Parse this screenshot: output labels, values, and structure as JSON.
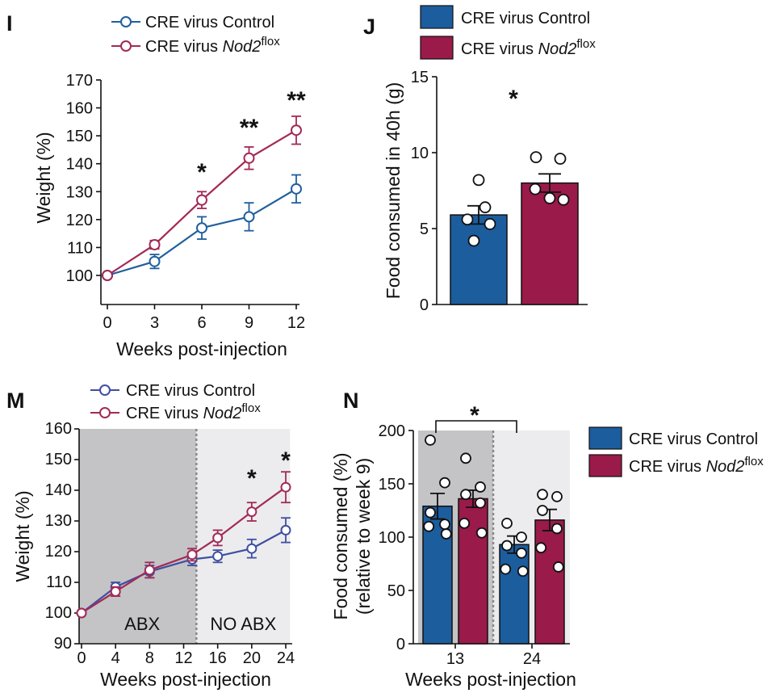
{
  "colors": {
    "control": "#1f5f9e",
    "nod2": "#a32a56",
    "control_line_M": "#3f4fa0",
    "bar_control": "#1c5d9e",
    "bar_nod2": "#9a1a4a",
    "abx_shade": "#c4c4c6",
    "noabx_shade": "#ececee"
  },
  "series_names": {
    "control": "CRE virus Control",
    "nod2_prefix": "CRE virus ",
    "nod2_gene": "Nod2",
    "nod2_sup": "flox"
  },
  "chart_data": [
    {
      "panel": "I",
      "type": "line",
      "xlabel": "Weeks post-injection",
      "ylabel": "Weight (%)",
      "xlim": [
        0,
        12
      ],
      "ylim": [
        100,
        170
      ],
      "xticks": [
        0,
        3,
        6,
        9,
        12
      ],
      "yticks": [
        100,
        110,
        120,
        130,
        140,
        150,
        160,
        170
      ],
      "x": [
        0,
        3,
        6,
        9,
        12
      ],
      "series": [
        {
          "name": "CRE virus Control",
          "values": [
            100,
            105,
            117,
            121,
            131
          ],
          "err": [
            0.5,
            2.5,
            4,
            5,
            5
          ]
        },
        {
          "name": "CRE virus Nod2flox",
          "values": [
            100,
            111,
            127,
            142,
            152
          ],
          "err": [
            0.5,
            1.5,
            3,
            4,
            5
          ]
        }
      ],
      "annotations": [
        {
          "x": 6,
          "text": "*"
        },
        {
          "x": 9,
          "text": "**"
        },
        {
          "x": 12,
          "text": "**"
        }
      ]
    },
    {
      "panel": "J",
      "type": "bar",
      "ylabel": "Food consumed in 40h (g)",
      "ylim": [
        0,
        15
      ],
      "yticks": [
        0,
        5,
        10,
        15
      ],
      "categories": [
        "CRE virus Control",
        "CRE virus Nod2flox"
      ],
      "values": [
        5.9,
        8.0
      ],
      "err": [
        0.6,
        0.6
      ],
      "points": [
        [
          8.2,
          6.4,
          5.6,
          5.3,
          4.2
        ],
        [
          9.7,
          9.6,
          7.6,
          7.0,
          6.9
        ]
      ],
      "annotations": [
        {
          "text": "*"
        }
      ]
    },
    {
      "panel": "M",
      "type": "line",
      "xlabel": "Weeks post-injection",
      "ylabel": "Weight (%)",
      "xlim": [
        0,
        24
      ],
      "ylim": [
        90,
        160
      ],
      "xticks": [
        0,
        4,
        8,
        12,
        16,
        20,
        24
      ],
      "yticks": [
        90,
        100,
        110,
        120,
        130,
        140,
        150,
        160
      ],
      "x": [
        0,
        4,
        8,
        13,
        16,
        20,
        24
      ],
      "series": [
        {
          "name": "CRE virus Control",
          "values": [
            100,
            108.5,
            113.5,
            117.5,
            118.5,
            121,
            127
          ],
          "err": [
            0.5,
            1.5,
            2,
            2,
            2,
            3,
            4
          ]
        },
        {
          "name": "CRE virus Nod2flox",
          "values": [
            100,
            107,
            114,
            119,
            124.5,
            133,
            141
          ],
          "err": [
            0.5,
            1.5,
            2.5,
            2,
            2.5,
            3,
            5
          ]
        }
      ],
      "regions": [
        {
          "from": 0,
          "to": 13.5,
          "label": "ABX"
        },
        {
          "from": 13.5,
          "to": 24.5,
          "label": "NO ABX"
        }
      ],
      "annotations": [
        {
          "x": 20,
          "text": "*"
        },
        {
          "x": 24,
          "text": "*"
        }
      ]
    },
    {
      "panel": "N",
      "type": "bar",
      "xlabel": "Weeks post-injection",
      "ylabel": "Food consumed (%)",
      "ylabel2": "(relative to week 9)",
      "ylim": [
        0,
        200
      ],
      "yticks": [
        0,
        50,
        100,
        150,
        200
      ],
      "categories": [
        "13",
        "24"
      ],
      "series": [
        {
          "name": "CRE virus Control",
          "values": [
            129,
            93
          ],
          "err": [
            12,
            8
          ],
          "points": [
            [
              191,
              151,
              123,
              112,
              110,
              103
            ],
            [
              113,
              100,
              92,
              85,
              70,
              68
            ]
          ]
        },
        {
          "name": "CRE virus Nod2flox",
          "values": [
            136,
            116
          ],
          "err": [
            8,
            10
          ],
          "points": [
            [
              174,
              147,
              140,
              132,
              113,
              104
            ],
            [
              140,
              138,
              125,
              108,
              90,
              72
            ]
          ]
        }
      ],
      "annotations": [
        {
          "text": "*"
        }
      ]
    }
  ]
}
